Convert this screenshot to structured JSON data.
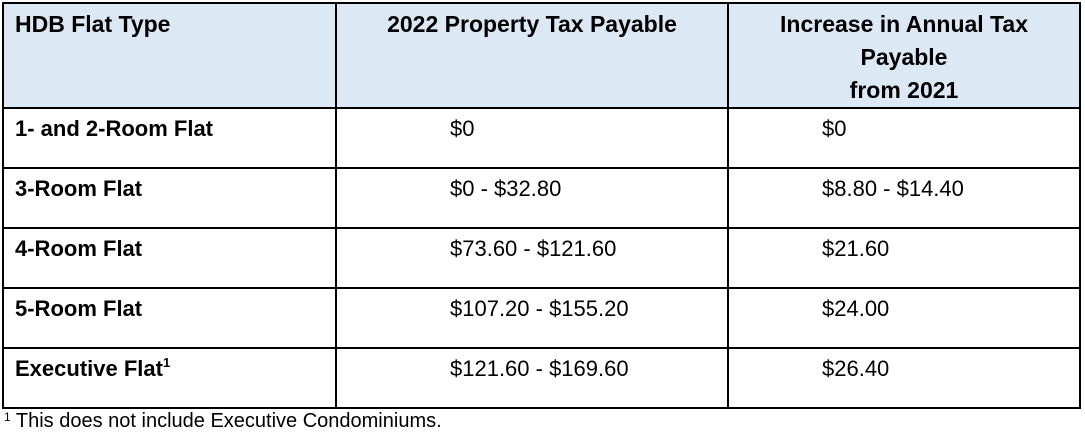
{
  "table": {
    "headers": {
      "flat_type": "HDB Flat Type",
      "tax_2022": "2022 Property Tax Payable",
      "increase": "Increase in Annual Tax\nPayable\nfrom 2021"
    },
    "rows": [
      {
        "flat_type": "1- and 2-Room Flat",
        "sup": "",
        "tax_2022": "$0",
        "increase": "$0"
      },
      {
        "flat_type": "3-Room Flat",
        "sup": "",
        "tax_2022": "$0 - $32.80",
        "increase": "$8.80 - $14.40"
      },
      {
        "flat_type": "4-Room Flat",
        "sup": "",
        "tax_2022": "$73.60 - $121.60",
        "increase": "$21.60"
      },
      {
        "flat_type": "5-Room Flat",
        "sup": "",
        "tax_2022": "$107.20 - $155.20",
        "increase": "$24.00"
      },
      {
        "flat_type": "Executive Flat",
        "sup": "1",
        "tax_2022": "$121.60 - $169.60",
        "increase": "$26.40"
      }
    ]
  },
  "footnote": {
    "marker": "1",
    "text": " This does not include Executive Condominiums."
  },
  "colors": {
    "header_bg": "#dce8f4",
    "border": "#000000",
    "text": "#000000",
    "page_bg": "#ffffff"
  }
}
